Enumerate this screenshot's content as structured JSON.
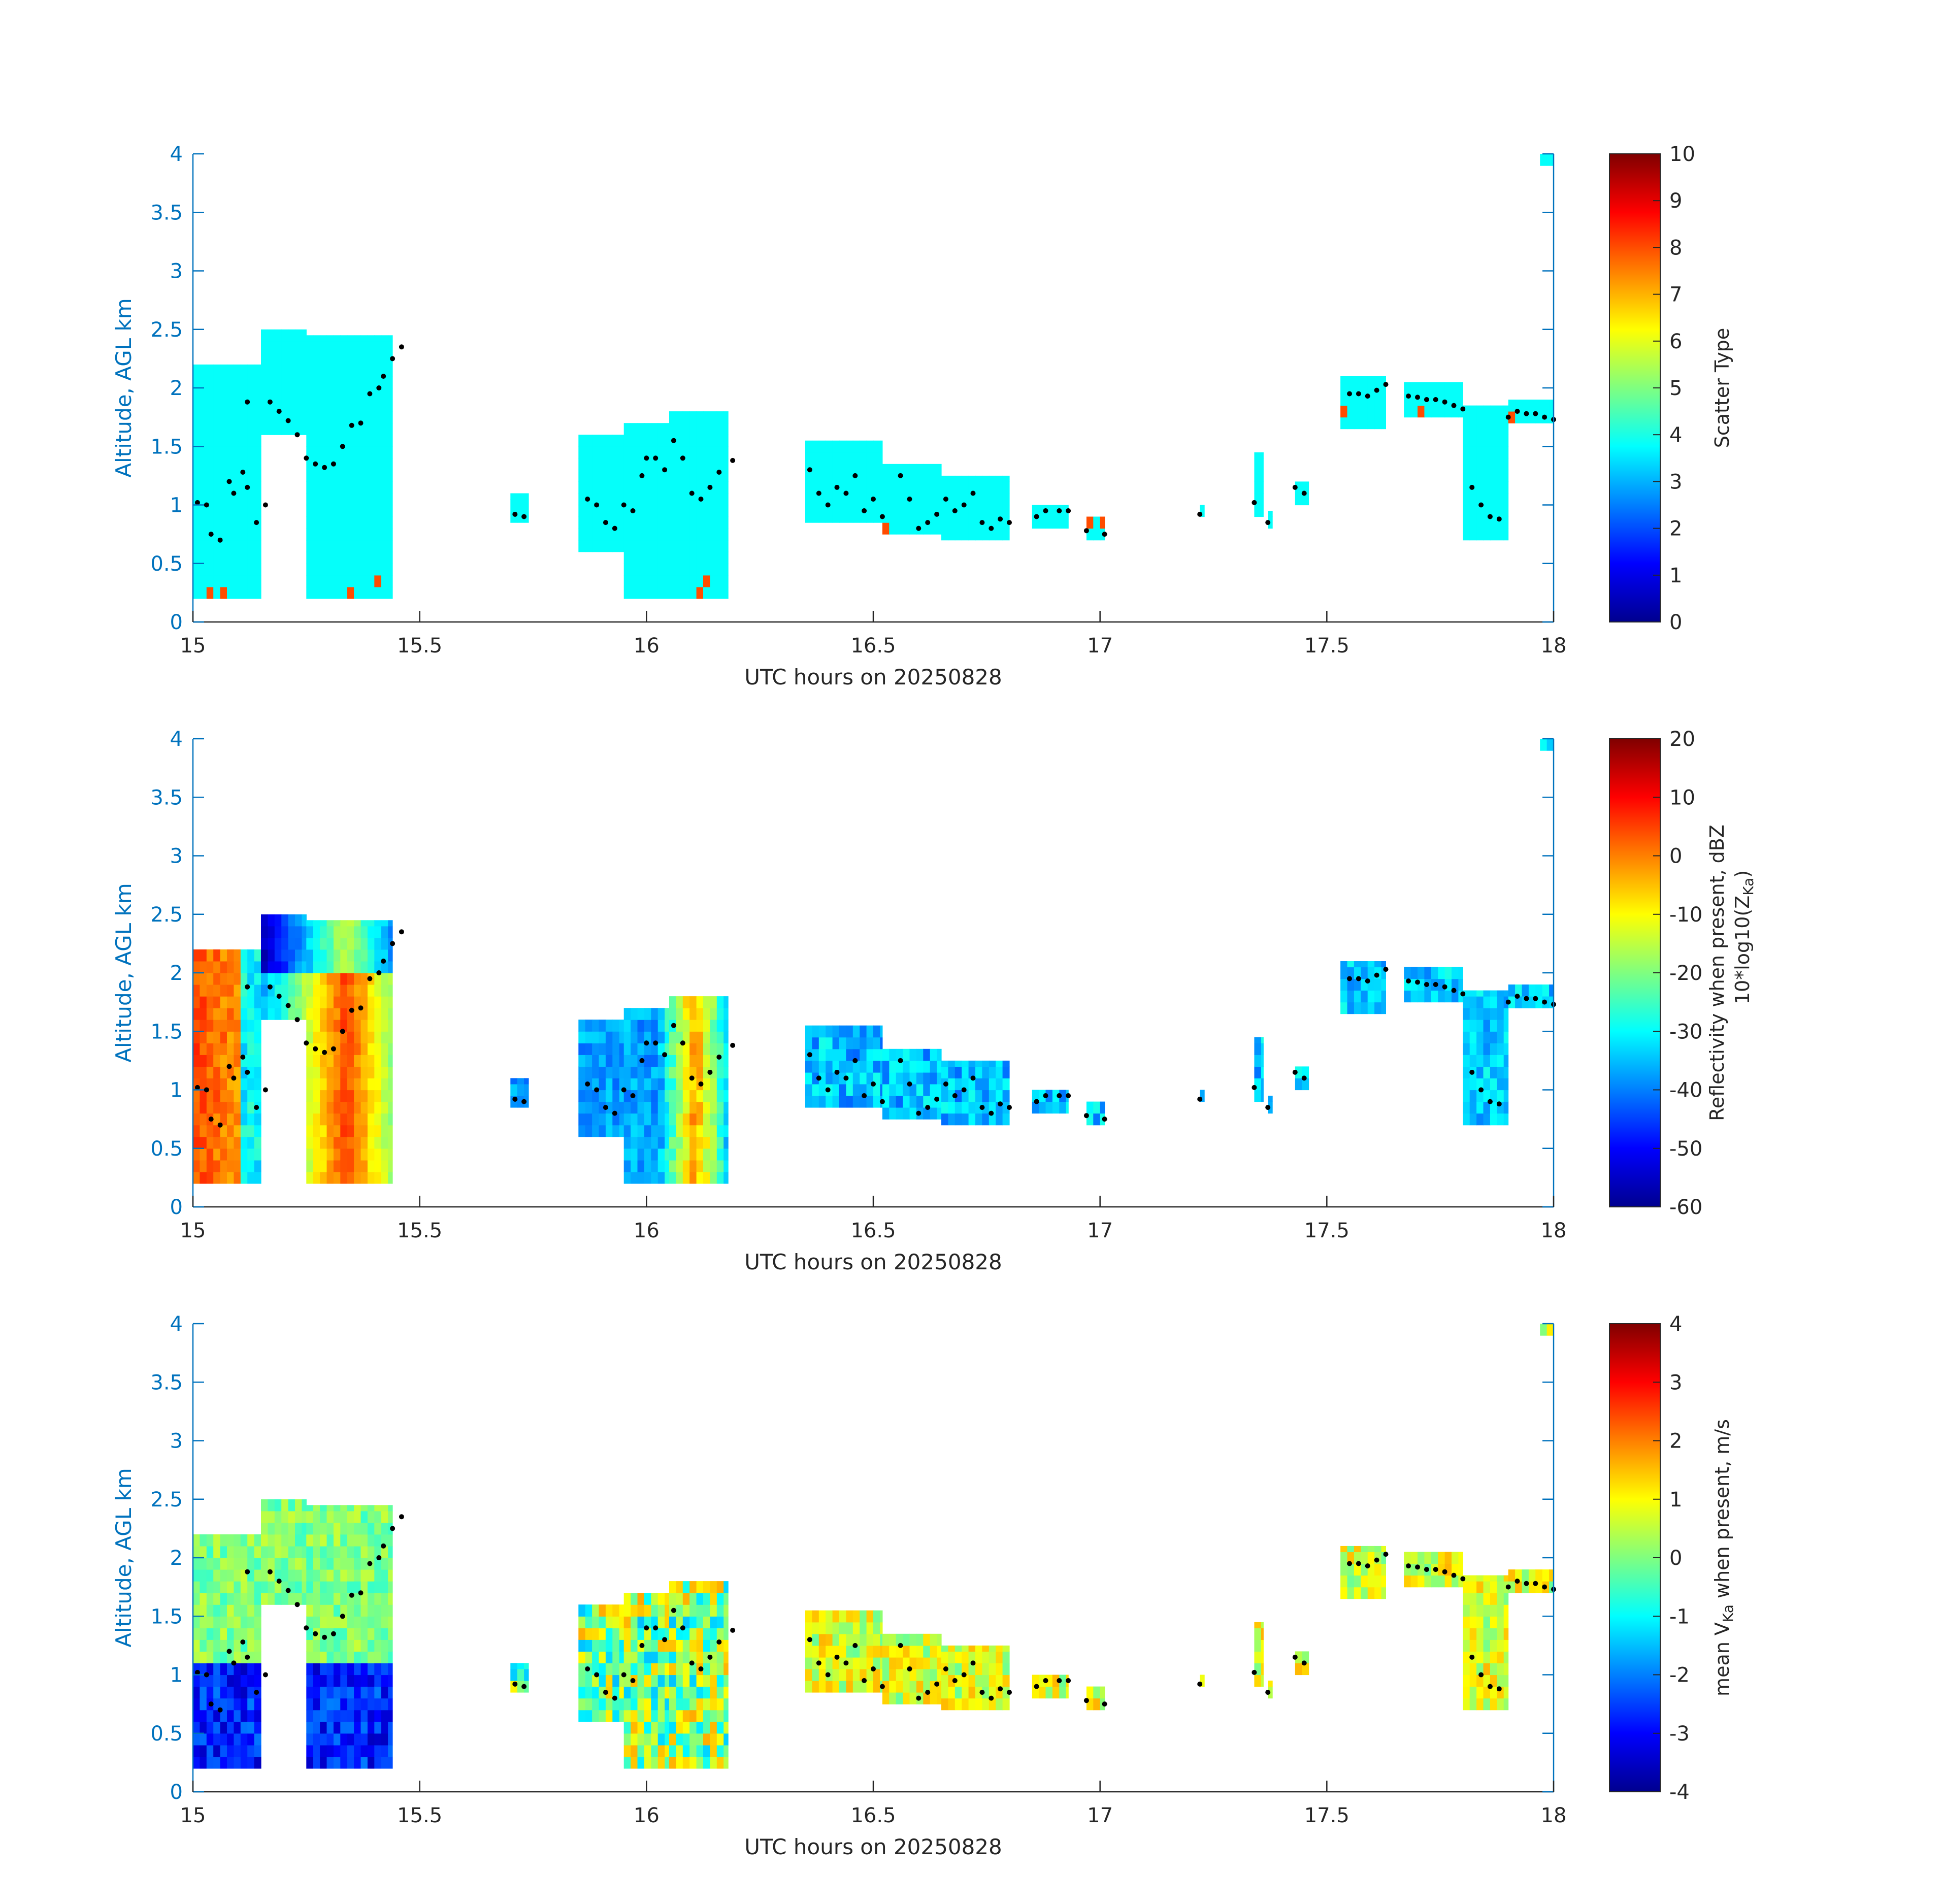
{
  "chart_data": [
    {
      "type": "heatmap",
      "name": "scatter-type",
      "xlabel": "UTC hours on 20250828",
      "ylabel": "Altitude, AGL km",
      "xlim": [
        15,
        18
      ],
      "ylim": [
        0,
        4
      ],
      "xticks": [
        "15",
        "15.5",
        "16",
        "16.5",
        "17",
        "17.5",
        "18"
      ],
      "yticks": [
        "0",
        "0.5",
        "1",
        "1.5",
        "2",
        "2.5",
        "3",
        "3.5",
        "4"
      ],
      "colorbar": {
        "label_lines": [
          "Scatter Type"
        ],
        "clim": [
          0,
          10
        ],
        "ticks": [
          "0",
          "1",
          "2",
          "3",
          "4",
          "5",
          "6",
          "7",
          "8",
          "9",
          "10"
        ]
      },
      "colormap": "jet",
      "scatter_dots": "cloud-base height (black dots)"
    },
    {
      "type": "heatmap",
      "name": "reflectivity",
      "xlabel": "UTC hours on 20250828",
      "ylabel": "Altitude, AGL km",
      "xlim": [
        15,
        18
      ],
      "ylim": [
        0,
        4
      ],
      "xticks": [
        "15",
        "15.5",
        "16",
        "16.5",
        "17",
        "17.5",
        "18"
      ],
      "yticks": [
        "0",
        "0.5",
        "1",
        "1.5",
        "2",
        "2.5",
        "3",
        "3.5",
        "4"
      ],
      "colorbar": {
        "label_lines": [
          "Reflectivity when present, dBZ",
          "10*log10(Z",
          "Ka",
          ")"
        ],
        "clim": [
          -60,
          20
        ],
        "ticks": [
          "-60",
          "-50",
          "-40",
          "-30",
          "-20",
          "-10",
          "0",
          "10",
          "20"
        ]
      },
      "colormap": "jet"
    },
    {
      "type": "heatmap",
      "name": "doppler-velocity",
      "xlabel": "UTC hours on 20250828",
      "ylabel": "Altitude, AGL km",
      "xlim": [
        15,
        18
      ],
      "ylim": [
        0,
        4
      ],
      "xticks": [
        "15",
        "15.5",
        "16",
        "16.5",
        "17",
        "17.5",
        "18"
      ],
      "yticks": [
        "0",
        "0.5",
        "1",
        "1.5",
        "2",
        "2.5",
        "3",
        "3.5",
        "4"
      ],
      "colorbar": {
        "label_lines": [
          "mean V",
          "Ka",
          " when present, m/s"
        ],
        "clim": [
          -4,
          4
        ],
        "ticks": [
          "-4",
          "-3",
          "-2",
          "-1",
          "0",
          "1",
          "2",
          "3",
          "4"
        ]
      },
      "colormap": "jet"
    }
  ],
  "cloud_regions": [
    {
      "x0": 15.0,
      "x1": 15.15,
      "y0": 0.2,
      "y1": 2.2
    },
    {
      "x0": 15.15,
      "x1": 15.25,
      "y0": 1.6,
      "y1": 2.5
    },
    {
      "x0": 15.25,
      "x1": 15.44,
      "y0": 0.2,
      "y1": 2.45
    },
    {
      "x0": 15.7,
      "x1": 15.74,
      "y0": 0.85,
      "y1": 1.1
    },
    {
      "x0": 15.85,
      "x1": 15.95,
      "y0": 0.6,
      "y1": 1.6
    },
    {
      "x0": 15.95,
      "x1": 16.05,
      "y0": 0.2,
      "y1": 1.7
    },
    {
      "x0": 16.05,
      "x1": 16.18,
      "y0": 0.2,
      "y1": 1.8
    },
    {
      "x0": 16.35,
      "x1": 16.52,
      "y0": 0.85,
      "y1": 1.55
    },
    {
      "x0": 16.52,
      "x1": 16.65,
      "y0": 0.75,
      "y1": 1.35
    },
    {
      "x0": 16.65,
      "x1": 16.8,
      "y0": 0.7,
      "y1": 1.25
    },
    {
      "x0": 16.85,
      "x1": 16.93,
      "y0": 0.8,
      "y1": 1.0
    },
    {
      "x0": 16.97,
      "x1": 17.01,
      "y0": 0.7,
      "y1": 0.9
    },
    {
      "x0": 17.22,
      "x1": 17.23,
      "y0": 0.9,
      "y1": 1.0
    },
    {
      "x0": 17.34,
      "x1": 17.36,
      "y0": 0.9,
      "y1": 1.45
    },
    {
      "x0": 17.37,
      "x1": 17.38,
      "y0": 0.8,
      "y1": 0.95
    },
    {
      "x0": 17.43,
      "x1": 17.46,
      "y0": 1.0,
      "y1": 1.2
    },
    {
      "x0": 17.53,
      "x1": 17.63,
      "y0": 1.65,
      "y1": 2.1
    },
    {
      "x0": 17.67,
      "x1": 17.8,
      "y0": 1.75,
      "y1": 2.05
    },
    {
      "x0": 17.8,
      "x1": 17.9,
      "y0": 0.7,
      "y1": 1.85
    },
    {
      "x0": 17.9,
      "x1": 18.0,
      "y0": 1.7,
      "y1": 1.9
    },
    {
      "x0": 17.97,
      "x1": 18.0,
      "y0": 3.9,
      "y1": 4.0
    }
  ],
  "cloud_base_dots": [
    [
      15.01,
      1.02
    ],
    [
      15.03,
      1.0
    ],
    [
      15.04,
      0.75
    ],
    [
      15.06,
      0.7
    ],
    [
      15.08,
      1.2
    ],
    [
      15.09,
      1.1
    ],
    [
      15.11,
      1.28
    ],
    [
      15.12,
      1.15
    ],
    [
      15.14,
      0.85
    ],
    [
      15.16,
      1.0
    ],
    [
      15.12,
      1.88
    ],
    [
      15.17,
      1.88
    ],
    [
      15.19,
      1.8
    ],
    [
      15.21,
      1.72
    ],
    [
      15.23,
      1.6
    ],
    [
      15.25,
      1.4
    ],
    [
      15.27,
      1.35
    ],
    [
      15.29,
      1.32
    ],
    [
      15.31,
      1.35
    ],
    [
      15.33,
      1.5
    ],
    [
      15.35,
      1.68
    ],
    [
      15.37,
      1.7
    ],
    [
      15.39,
      1.95
    ],
    [
      15.41,
      2.0
    ],
    [
      15.42,
      2.1
    ],
    [
      15.44,
      2.25
    ],
    [
      15.46,
      2.35
    ],
    [
      15.71,
      0.92
    ],
    [
      15.73,
      0.9
    ],
    [
      15.87,
      1.05
    ],
    [
      15.89,
      1.0
    ],
    [
      15.91,
      0.85
    ],
    [
      15.93,
      0.8
    ],
    [
      15.95,
      1.0
    ],
    [
      15.97,
      0.95
    ],
    [
      15.99,
      1.25
    ],
    [
      16.0,
      1.4
    ],
    [
      16.02,
      1.4
    ],
    [
      16.04,
      1.3
    ],
    [
      16.06,
      1.55
    ],
    [
      16.08,
      1.4
    ],
    [
      16.1,
      1.1
    ],
    [
      16.12,
      1.05
    ],
    [
      16.14,
      1.15
    ],
    [
      16.16,
      1.28
    ],
    [
      16.19,
      1.38
    ],
    [
      16.36,
      1.3
    ],
    [
      16.38,
      1.1
    ],
    [
      16.4,
      1.0
    ],
    [
      16.42,
      1.15
    ],
    [
      16.44,
      1.1
    ],
    [
      16.46,
      1.25
    ],
    [
      16.48,
      0.95
    ],
    [
      16.5,
      1.05
    ],
    [
      16.52,
      0.9
    ],
    [
      16.56,
      1.25
    ],
    [
      16.58,
      1.05
    ],
    [
      16.6,
      0.8
    ],
    [
      16.62,
      0.85
    ],
    [
      16.64,
      0.92
    ],
    [
      16.66,
      1.05
    ],
    [
      16.68,
      0.95
    ],
    [
      16.7,
      1.0
    ],
    [
      16.72,
      1.1
    ],
    [
      16.74,
      0.85
    ],
    [
      16.76,
      0.8
    ],
    [
      16.78,
      0.88
    ],
    [
      16.8,
      0.85
    ],
    [
      16.86,
      0.9
    ],
    [
      16.88,
      0.95
    ],
    [
      16.91,
      0.95
    ],
    [
      16.93,
      0.95
    ],
    [
      16.97,
      0.78
    ],
    [
      17.01,
      0.75
    ],
    [
      17.22,
      0.92
    ],
    [
      17.34,
      1.02
    ],
    [
      17.37,
      0.85
    ],
    [
      17.43,
      1.15
    ],
    [
      17.45,
      1.1
    ],
    [
      17.55,
      1.95
    ],
    [
      17.57,
      1.95
    ],
    [
      17.59,
      1.93
    ],
    [
      17.61,
      1.98
    ],
    [
      17.63,
      2.03
    ],
    [
      17.68,
      1.93
    ],
    [
      17.7,
      1.92
    ],
    [
      17.72,
      1.9
    ],
    [
      17.74,
      1.9
    ],
    [
      17.76,
      1.88
    ],
    [
      17.78,
      1.85
    ],
    [
      17.8,
      1.82
    ],
    [
      17.82,
      1.15
    ],
    [
      17.84,
      1.0
    ],
    [
      17.86,
      0.9
    ],
    [
      17.88,
      0.88
    ],
    [
      17.9,
      1.75
    ],
    [
      17.92,
      1.8
    ],
    [
      17.94,
      1.78
    ],
    [
      17.96,
      1.78
    ],
    [
      17.98,
      1.75
    ],
    [
      18.0,
      1.73
    ]
  ]
}
